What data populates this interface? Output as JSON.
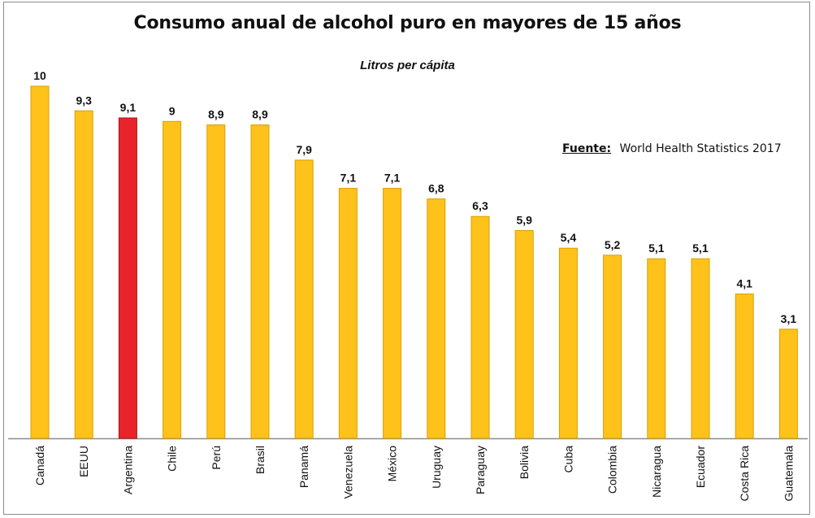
{
  "chart_data": {
    "type": "bar",
    "title": "Consumo anual de alcohol puro en mayores de 15 años",
    "subtitle": "Litros per cápita",
    "source_label": "Fuente:",
    "source_text": "World Health Statistics 2017",
    "categories": [
      "Canadá",
      "EEUU",
      "Argentina",
      "Chile",
      "Perú",
      "Brasil",
      "Panamá",
      "Venezuela",
      "México",
      "Uruguay",
      "Paraguay",
      "Bolivia",
      "Cuba",
      "Colombia",
      "Nicaragua",
      "Ecuador",
      "Costa Rica",
      "Guatemala"
    ],
    "values": [
      10,
      9.3,
      9.1,
      9,
      8.9,
      8.9,
      7.9,
      7.1,
      7.1,
      6.8,
      6.3,
      5.9,
      5.4,
      5.2,
      5.1,
      5.1,
      4.1,
      3.1
    ],
    "value_labels": [
      "10",
      "9,3",
      "9,1",
      "9",
      "8,9",
      "8,9",
      "7,9",
      "7,1",
      "7,1",
      "6,8",
      "6,3",
      "5,9",
      "5,4",
      "5,2",
      "5,1",
      "5,1",
      "4,1",
      "3,1"
    ],
    "colors": {
      "default": "#FFC21A",
      "default_border": "#D9A000",
      "highlight": "#E8242A",
      "highlight_border": "#B01015",
      "axis": "#8c8c8c"
    },
    "highlight_category": "Argentina",
    "ylim": [
      0,
      10
    ],
    "grid": false,
    "legend": "none"
  }
}
